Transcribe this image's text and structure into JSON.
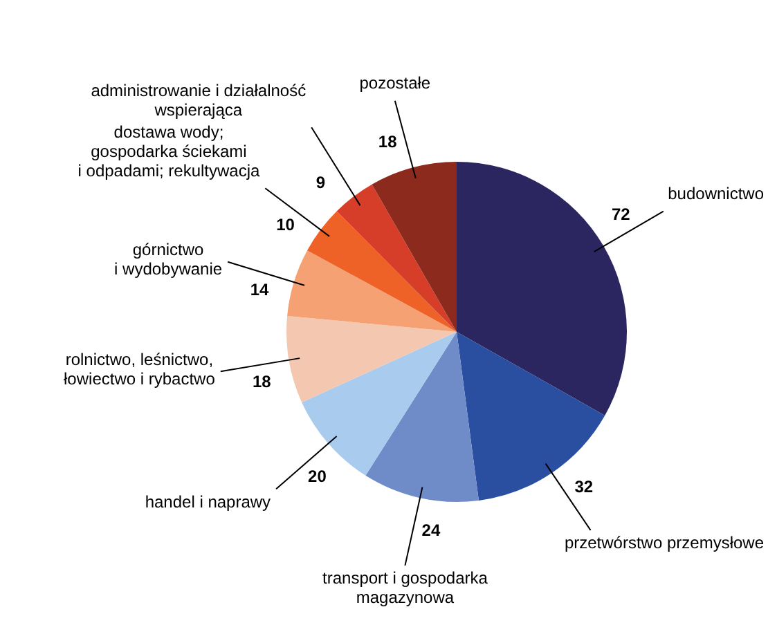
{
  "chart_data": {
    "type": "pie",
    "categories": [
      "budownictwo",
      "przetwórstwo przemysłowe",
      "transport i gospodarka\nmagazynowa",
      "handel i naprawy",
      "rolnictwo, leśnictwo,\nłowiectwo i rybactwo",
      "górnictwo\ni wydobywanie",
      "dostawa wody;\ngospodarka ściekami\ni odpadami; rekultywacja",
      "administrowanie i działalność\nwspierająca",
      "pozostałe"
    ],
    "values": [
      72,
      32,
      24,
      20,
      18,
      14,
      10,
      9,
      18
    ],
    "colors": [
      "#2b2660",
      "#2a4fa0",
      "#6f8cc9",
      "#a9ccee",
      "#f4c7b0",
      "#f5a173",
      "#ee6227",
      "#d63e2a",
      "#8c2a1e"
    ],
    "data_labels": true,
    "legend": false
  }
}
